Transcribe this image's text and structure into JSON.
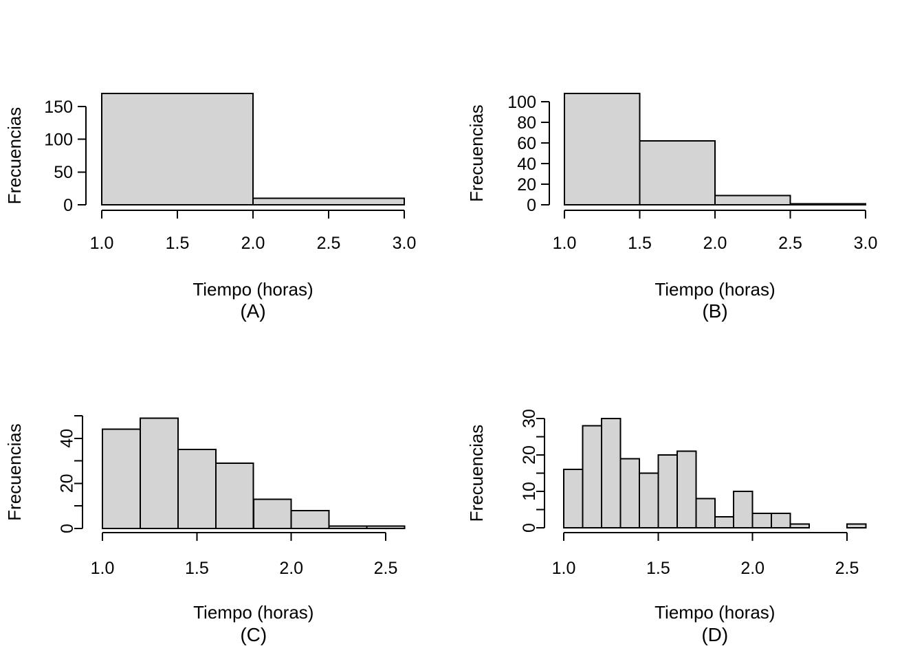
{
  "figure": {
    "background_color": "#ffffff",
    "bar_fill_color": "#d4d4d4",
    "bar_border_color": "#000000",
    "axis_color": "#000000",
    "text_color": "#000000"
  },
  "chart_data": [
    {
      "type": "bar",
      "subtype": "histogram",
      "panel_label": "(A)",
      "xlabel": "Tiempo (horas)",
      "ylabel": "Frecuencias",
      "bin_edges": [
        1.0,
        2.0,
        3.0
      ],
      "counts": [
        170,
        10
      ],
      "xlim": [
        1.0,
        3.0
      ],
      "y_axis_max": 150,
      "grid": false,
      "legend": null,
      "y_tick_labels_rotated": false,
      "x_ticks": [
        {
          "value": 1.0,
          "label": "1.0"
        },
        {
          "value": 1.5,
          "label": "1.5"
        },
        {
          "value": 2.0,
          "label": "2.0"
        },
        {
          "value": 2.5,
          "label": "2.5"
        },
        {
          "value": 3.0,
          "label": "3.0"
        }
      ],
      "y_ticks": [
        {
          "value": 0,
          "label": "0"
        },
        {
          "value": 50,
          "label": "50"
        },
        {
          "value": 100,
          "label": "100"
        },
        {
          "value": 150,
          "label": "150"
        }
      ]
    },
    {
      "type": "bar",
      "subtype": "histogram",
      "panel_label": "(B)",
      "xlabel": "Tiempo (horas)",
      "ylabel": "Frecuencias",
      "bin_edges": [
        1.0,
        1.5,
        2.0,
        2.5,
        3.0
      ],
      "counts": [
        108,
        62,
        9,
        1
      ],
      "xlim": [
        1.0,
        3.0
      ],
      "y_axis_max": 100,
      "grid": false,
      "legend": null,
      "y_tick_labels_rotated": false,
      "x_ticks": [
        {
          "value": 1.0,
          "label": "1.0"
        },
        {
          "value": 1.5,
          "label": "1.5"
        },
        {
          "value": 2.0,
          "label": "2.0"
        },
        {
          "value": 2.5,
          "label": "2.5"
        },
        {
          "value": 3.0,
          "label": "3.0"
        }
      ],
      "y_ticks": [
        {
          "value": 0,
          "label": "0"
        },
        {
          "value": 20,
          "label": "20"
        },
        {
          "value": 40,
          "label": "40"
        },
        {
          "value": 60,
          "label": "60"
        },
        {
          "value": 80,
          "label": "80"
        },
        {
          "value": 100,
          "label": "100"
        }
      ]
    },
    {
      "type": "bar",
      "subtype": "histogram",
      "panel_label": "(C)",
      "xlabel": "Tiempo (horas)",
      "ylabel": "Frecuencias",
      "bin_edges": [
        1.0,
        1.2,
        1.4,
        1.6,
        1.8,
        2.0,
        2.2,
        2.4,
        2.6
      ],
      "counts": [
        44,
        49,
        35,
        29,
        13,
        8,
        1,
        1
      ],
      "xlim": [
        1.0,
        2.6
      ],
      "y_axis_max": 50,
      "grid": false,
      "legend": null,
      "y_tick_labels_rotated": true,
      "x_ticks": [
        {
          "value": 1.0,
          "label": "1.0"
        },
        {
          "value": 1.5,
          "label": "1.5"
        },
        {
          "value": 2.0,
          "label": "2.0"
        },
        {
          "value": 2.5,
          "label": "2.5"
        }
      ],
      "y_ticks": [
        {
          "value": 0,
          "label": "0"
        },
        {
          "value": 10,
          "label": ""
        },
        {
          "value": 20,
          "label": "20"
        },
        {
          "value": 30,
          "label": ""
        },
        {
          "value": 40,
          "label": "40"
        },
        {
          "value": 50,
          "label": ""
        }
      ]
    },
    {
      "type": "bar",
      "subtype": "histogram",
      "panel_label": "(D)",
      "xlabel": "Tiempo (horas)",
      "ylabel": "Frecuencias",
      "bin_edges": [
        1.0,
        1.1,
        1.2,
        1.3,
        1.4,
        1.5,
        1.6,
        1.7,
        1.8,
        1.9,
        2.0,
        2.1,
        2.2,
        2.3,
        2.4,
        2.5,
        2.6
      ],
      "counts": [
        16,
        28,
        30,
        19,
        15,
        20,
        21,
        8,
        3,
        10,
        4,
        4,
        1,
        0,
        0,
        1
      ],
      "xlim": [
        1.0,
        2.6
      ],
      "y_axis_max": 30,
      "grid": false,
      "legend": null,
      "y_tick_labels_rotated": true,
      "x_ticks": [
        {
          "value": 1.0,
          "label": "1.0"
        },
        {
          "value": 1.5,
          "label": "1.5"
        },
        {
          "value": 2.0,
          "label": "2.0"
        },
        {
          "value": 2.5,
          "label": "2.5"
        }
      ],
      "y_ticks": [
        {
          "value": 0,
          "label": "0"
        },
        {
          "value": 5,
          "label": ""
        },
        {
          "value": 10,
          "label": "10"
        },
        {
          "value": 15,
          "label": ""
        },
        {
          "value": 20,
          "label": "20"
        },
        {
          "value": 25,
          "label": ""
        },
        {
          "value": 30,
          "label": "30"
        }
      ]
    }
  ]
}
